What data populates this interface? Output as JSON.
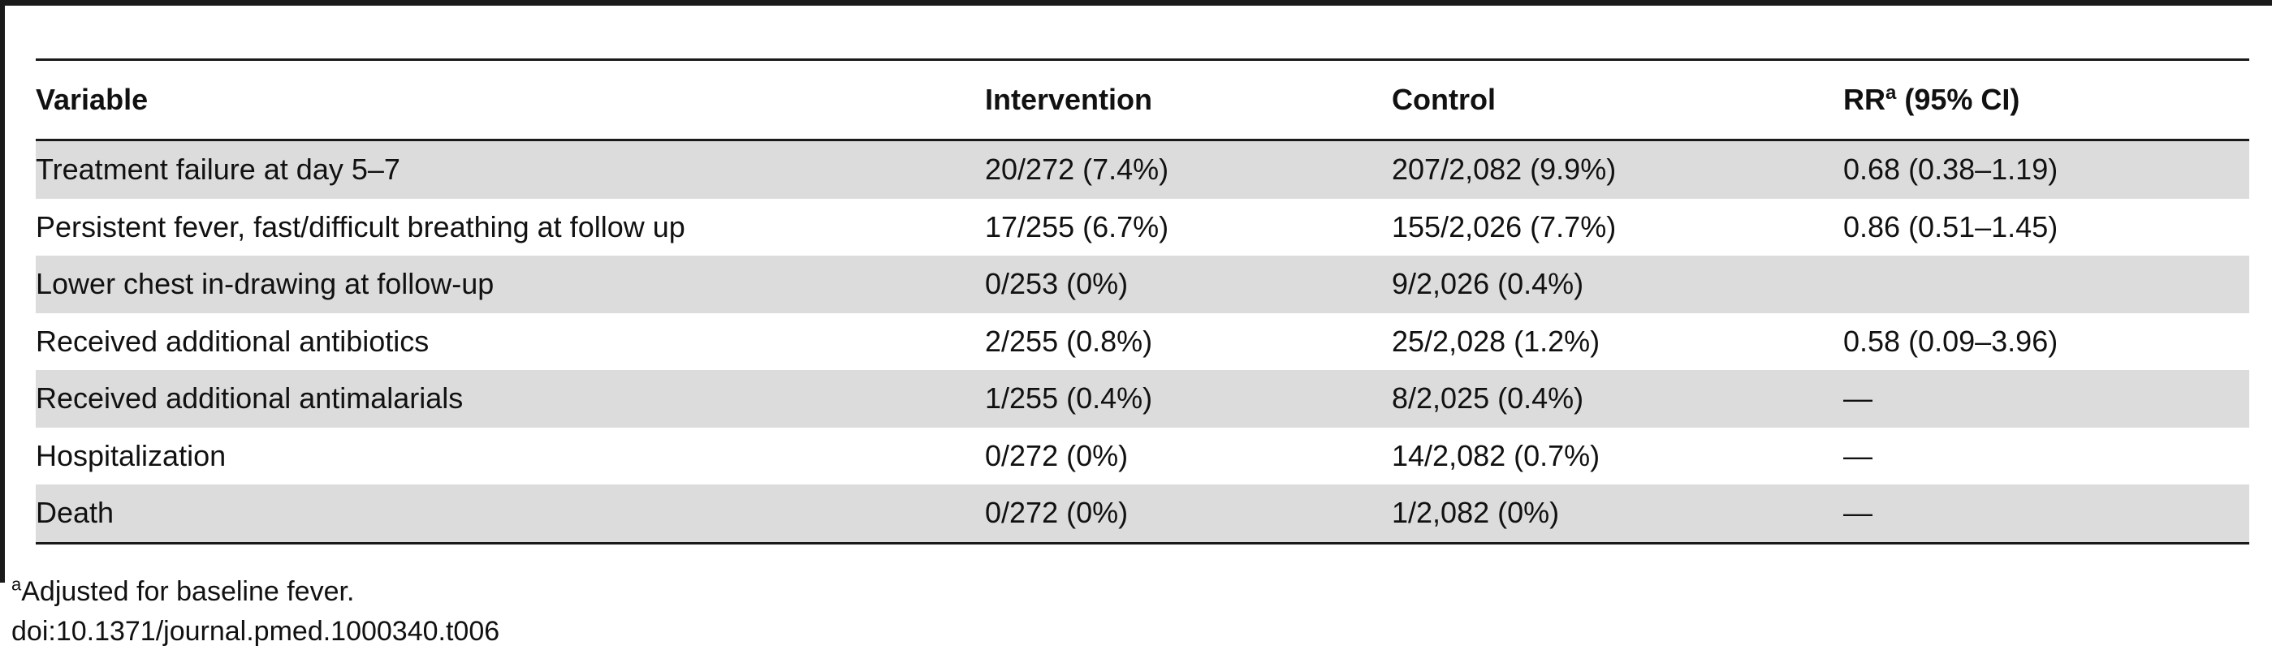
{
  "table": {
    "headers": {
      "variable": "Variable",
      "intervention": "Intervention",
      "control": "Control",
      "rr_label": "RR",
      "rr_sup": "a",
      "rr_ci": " (95% CI)"
    },
    "rows": [
      {
        "variable": "Treatment failure at day 5–7",
        "intervention": "20/272 (7.4%)",
        "control": "207/2,082 (9.9%)",
        "rr": "0.68 (0.38–1.19)"
      },
      {
        "variable": "Persistent fever, fast/difficult breathing at follow up",
        "intervention": "17/255 (6.7%)",
        "control": "155/2,026 (7.7%)",
        "rr": "0.86 (0.51–1.45)"
      },
      {
        "variable": "Lower chest in-drawing at follow-up",
        "intervention": "0/253 (0%)",
        "control": "9/2,026 (0.4%)",
        "rr": ""
      },
      {
        "variable": "Received additional antibiotics",
        "intervention": "2/255 (0.8%)",
        "control": "25/2,028 (1.2%)",
        "rr": "0.58 (0.09–3.96)"
      },
      {
        "variable": "Received additional antimalarials",
        "intervention": "1/255 (0.4%)",
        "control": "8/2,025 (0.4%)",
        "rr": "—"
      },
      {
        "variable": "Hospitalization",
        "intervention": "0/272 (0%)",
        "control": "14/2,082 (0.7%)",
        "rr": "—"
      },
      {
        "variable": "Death",
        "intervention": "0/272 (0%)",
        "control": "1/2,082 (0%)",
        "rr": "—"
      }
    ]
  },
  "footnote": {
    "marker": "a",
    "text": "Adjusted for baseline fever."
  },
  "doi": "doi:10.1371/journal.pmed.1000340.t006"
}
